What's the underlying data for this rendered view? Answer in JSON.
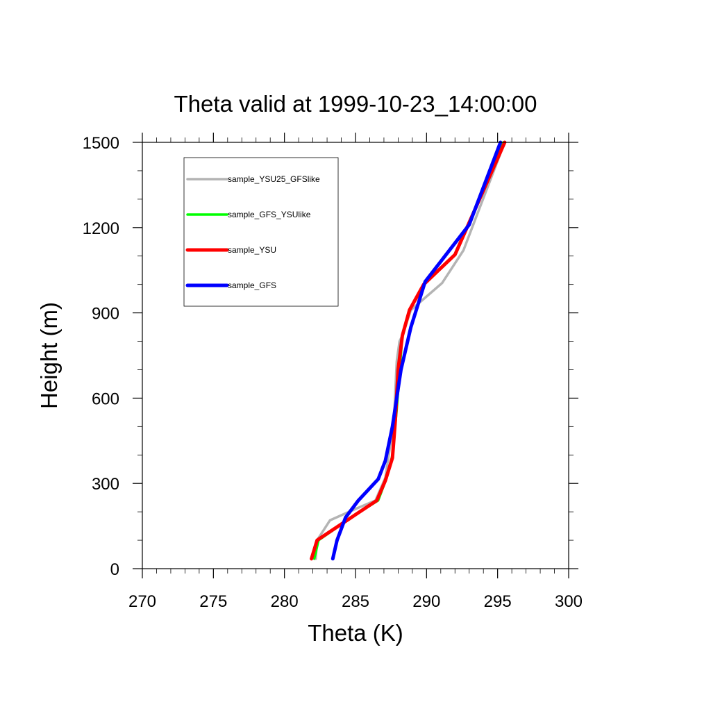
{
  "chart_data": {
    "type": "line",
    "title": "Theta valid at 1999-10-23_14:00:00",
    "xlabel": "Theta (K)",
    "ylabel": "Height (m)",
    "xlim": [
      270,
      300
    ],
    "ylim": [
      0,
      1500
    ],
    "xticks": [
      270,
      275,
      280,
      285,
      290,
      295,
      300
    ],
    "yticks": [
      0,
      300,
      600,
      900,
      1200,
      1500
    ],
    "xtick_labels": [
      "270",
      "275",
      "280",
      "285",
      "290",
      "295",
      "300"
    ],
    "ytick_labels": [
      "0",
      "300",
      "600",
      "900",
      "1200",
      "1500"
    ],
    "legend_position": "top-left",
    "grid": false,
    "series": [
      {
        "name": "sample_YSU25_GFSlike",
        "color": "#b4b4b4",
        "x": [
          282.2,
          282.3,
          283.2,
          285.0,
          286.4,
          287.1,
          287.7,
          287.9,
          288.1,
          288.3,
          288.9,
          291.1,
          292.6,
          295.5
        ],
        "y": [
          35,
          100,
          170,
          210,
          240,
          320,
          520,
          730,
          800,
          820,
          910,
          1005,
          1120,
          1500
        ]
      },
      {
        "name": "sample_GFS_YSUlike",
        "color": "#00ff00",
        "x": [
          282.1,
          282.4,
          285.0,
          286.6,
          287.2,
          287.6,
          287.9,
          288.3,
          288.8,
          289.8,
          292.0,
          295.4
        ],
        "y": [
          35,
          100,
          190,
          240,
          320,
          400,
          560,
          820,
          910,
          1000,
          1105,
          1500
        ]
      },
      {
        "name": "sample_YSU",
        "color": "#ff0000",
        "x": [
          281.9,
          282.3,
          285.0,
          286.5,
          287.1,
          287.6,
          287.8,
          288.0,
          288.3,
          288.8,
          289.8,
          292.0,
          295.5
        ],
        "y": [
          35,
          100,
          190,
          240,
          310,
          390,
          520,
          700,
          820,
          910,
          1000,
          1105,
          1500
        ]
      },
      {
        "name": "sample_GFS",
        "color": "#0000ff",
        "x": [
          283.4,
          283.7,
          284.3,
          285.2,
          286.6,
          287.1,
          287.6,
          288.2,
          288.9,
          289.9,
          291.3,
          293.0,
          295.2
        ],
        "y": [
          35,
          100,
          180,
          240,
          315,
          380,
          500,
          700,
          850,
          1010,
          1100,
          1210,
          1500
        ]
      }
    ]
  }
}
